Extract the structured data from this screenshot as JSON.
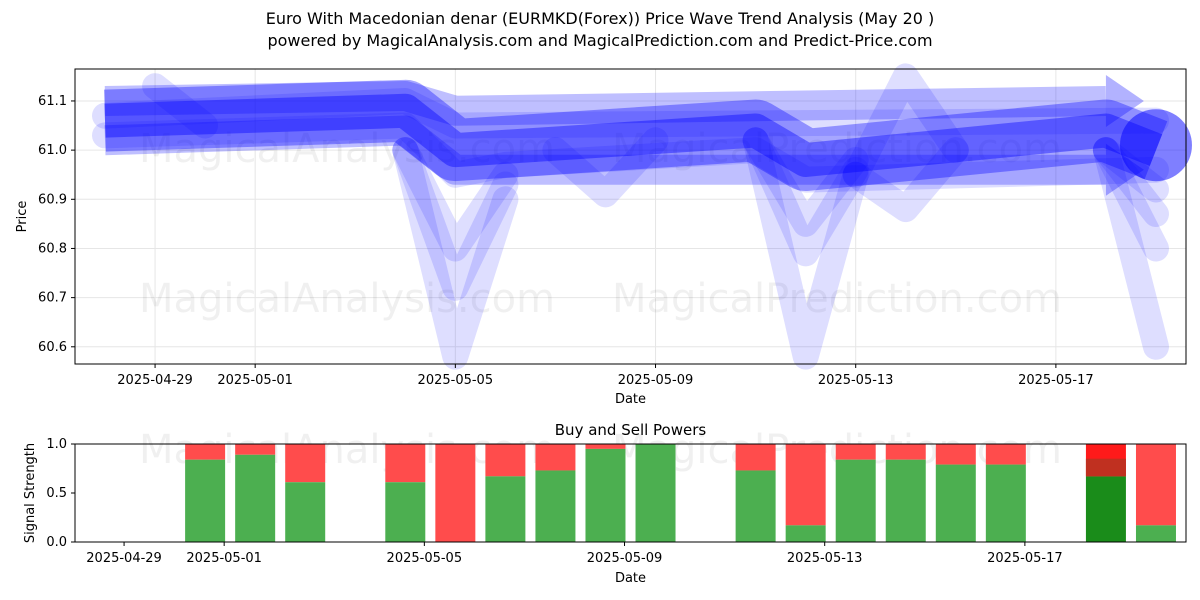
{
  "title_line1": "Euro With Macedonian denar (EURMKD(Forex)) Price Wave Trend Analysis (May 20 )",
  "title_line2": "powered by MagicalAnalysis.com and MagicalPrediction.com and Predict-Price.com",
  "watermarks": [
    "MagicalAnalysis.com",
    "MagicalPrediction.com"
  ],
  "colors": {
    "wave": "#0000ff",
    "buy": "#4caf50",
    "sell": "#ff4c4c",
    "buy_dark": "#1a8c1a",
    "sell_bright": "#ff1a1a"
  },
  "chart_data": [
    {
      "type": "area",
      "title": "",
      "xlabel": "Date",
      "ylabel": "Price",
      "x_range": [
        "2025-04-28",
        "2025-05-19"
      ],
      "ylim": [
        60.565,
        61.165
      ],
      "x_ticks": [
        "2025-04-29",
        "2025-05-01",
        "2025-05-05",
        "2025-05-09",
        "2025-05-13",
        "2025-05-17"
      ],
      "y_ticks": [
        60.6,
        60.7,
        60.8,
        60.9,
        61.0,
        61.1
      ],
      "grid": true,
      "main_wave": {
        "x": [
          "2025-04-28",
          "2025-05-04",
          "2025-05-05",
          "2025-05-11",
          "2025-05-12",
          "2025-05-18",
          "2025-05-19"
        ],
        "y": [
          61.06,
          61.08,
          61.0,
          61.04,
          60.98,
          61.04,
          61.0
        ]
      },
      "waves": [
        {
          "x": [
            "2025-04-28",
            "2025-05-04",
            "2025-05-05",
            "2025-05-19"
          ],
          "y": [
            61.07,
            61.1,
            61.05,
            61.06
          ]
        },
        {
          "x": [
            "2025-04-28",
            "2025-05-04",
            "2025-05-05",
            "2025-05-06",
            "2025-05-11",
            "2025-05-12",
            "2025-05-19"
          ],
          "y": [
            61.03,
            61.05,
            60.95,
            60.97,
            61.0,
            60.94,
            60.96
          ]
        },
        {
          "x": [
            "2025-05-04",
            "2025-05-05",
            "2025-05-06"
          ],
          "y": [
            61.0,
            60.58,
            60.9
          ]
        },
        {
          "x": [
            "2025-05-04",
            "2025-05-05",
            "2025-05-06"
          ],
          "y": [
            61.0,
            60.72,
            60.93
          ]
        },
        {
          "x": [
            "2025-05-04",
            "2025-05-05",
            "2025-05-06"
          ],
          "y": [
            61.0,
            60.8,
            60.95
          ]
        },
        {
          "x": [
            "2025-05-11",
            "2025-05-12",
            "2025-05-13"
          ],
          "y": [
            61.02,
            60.58,
            60.95
          ]
        },
        {
          "x": [
            "2025-05-11",
            "2025-05-12",
            "2025-05-13"
          ],
          "y": [
            61.02,
            60.79,
            60.96
          ]
        },
        {
          "x": [
            "2025-05-11",
            "2025-05-12",
            "2025-05-13"
          ],
          "y": [
            61.02,
            60.85,
            60.98
          ]
        },
        {
          "x": [
            "2025-05-13",
            "2025-05-14",
            "2025-05-15"
          ],
          "y": [
            60.95,
            61.15,
            61.0
          ]
        },
        {
          "x": [
            "2025-05-13",
            "2025-05-14",
            "2025-05-15"
          ],
          "y": [
            60.95,
            60.88,
            61.0
          ]
        },
        {
          "x": [
            "2025-05-07",
            "2025-05-08",
            "2025-05-09"
          ],
          "y": [
            61.0,
            60.91,
            61.02
          ]
        },
        {
          "x": [
            "2025-05-18",
            "2025-05-19"
          ],
          "y": [
            61.0,
            60.6
          ]
        },
        {
          "x": [
            "2025-05-18",
            "2025-05-19"
          ],
          "y": [
            61.0,
            60.8
          ]
        },
        {
          "x": [
            "2025-05-18",
            "2025-05-19"
          ],
          "y": [
            61.0,
            60.87
          ]
        },
        {
          "x": [
            "2025-05-18",
            "2025-05-19"
          ],
          "y": [
            61.0,
            60.92
          ]
        },
        {
          "x": [
            "2025-04-29",
            "2025-04-30"
          ],
          "y": [
            61.13,
            61.05
          ]
        }
      ],
      "arrows": [
        {
          "x": [
            "2025-04-28",
            "2025-05-04",
            "2025-05-05",
            "2025-05-18"
          ],
          "y": [
            61.02,
            61.04,
            60.96,
            60.96
          ],
          "end": "2025-05-18"
        },
        {
          "x": [
            "2025-04-28",
            "2025-05-04",
            "2025-05-05",
            "2025-05-18"
          ],
          "y": [
            61.1,
            61.11,
            61.08,
            61.1
          ],
          "end": "2025-05-18"
        }
      ]
    },
    {
      "type": "bar",
      "title": "Buy and Sell Powers",
      "xlabel": "Date",
      "ylabel": "Signal Strength",
      "x_range": [
        "2025-04-28",
        "2025-05-19"
      ],
      "ylim": [
        0,
        1
      ],
      "y_ticks": [
        0.0,
        0.5,
        1.0
      ],
      "x_ticks": [
        "2025-04-29",
        "2025-05-01",
        "2025-05-05",
        "2025-05-09",
        "2025-05-13",
        "2025-05-17"
      ],
      "series": [
        {
          "name": "",
          "values": []
        }
      ],
      "bars": [
        {
          "date": "2025-04-30",
          "buy": 0.84
        },
        {
          "date": "2025-05-01",
          "buy": 0.89
        },
        {
          "date": "2025-05-02",
          "buy": 0.61
        },
        {
          "date": "2025-05-04",
          "buy": 0.61
        },
        {
          "date": "2025-05-05",
          "buy": 0.0
        },
        {
          "date": "2025-05-06",
          "buy": 0.67
        },
        {
          "date": "2025-05-07",
          "buy": 0.73
        },
        {
          "date": "2025-05-08",
          "buy": 0.95
        },
        {
          "date": "2025-05-09",
          "buy": 1.0
        },
        {
          "date": "2025-05-11",
          "buy": 0.73
        },
        {
          "date": "2025-05-12",
          "buy": 0.17
        },
        {
          "date": "2025-05-13",
          "buy": 0.84
        },
        {
          "date": "2025-05-14",
          "buy": 0.84
        },
        {
          "date": "2025-05-15",
          "buy": 0.79
        },
        {
          "date": "2025-05-16",
          "buy": 0.79
        },
        {
          "date": "2025-05-18",
          "buy": 0.67,
          "highlight": true
        },
        {
          "date": "2025-05-19",
          "buy": 0.17
        }
      ]
    }
  ]
}
